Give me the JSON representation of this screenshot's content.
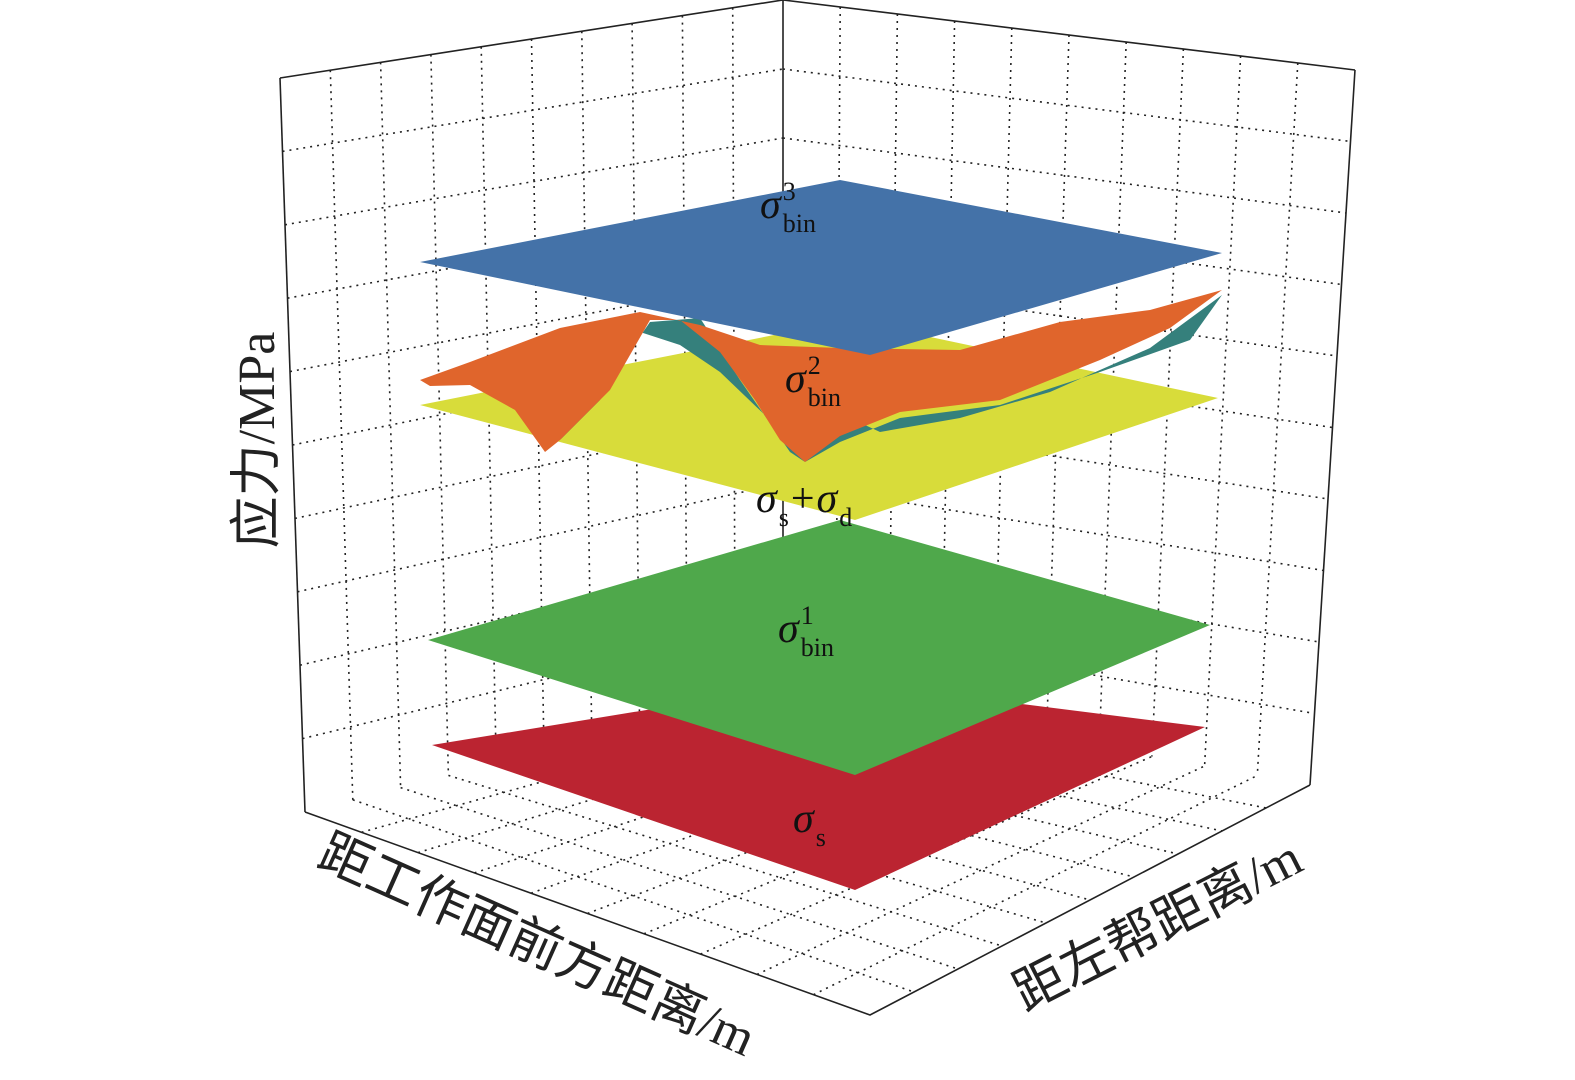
{
  "axes": {
    "z_label": "应力/MPa",
    "x_label": "距工作面前方距离/m",
    "y_label": "距左帮距离/m"
  },
  "surfaces": [
    {
      "label": [
        {
          "text": "σ",
          "pos": "base"
        },
        {
          "text": "3",
          "pos": "sup"
        },
        {
          "text": "bin",
          "pos": "sub"
        }
      ]
    },
    {
      "label": [
        {
          "text": "σ",
          "pos": "base"
        },
        {
          "text": "2",
          "pos": "sup"
        },
        {
          "text": "bin",
          "pos": "sub"
        }
      ]
    },
    {
      "label": [
        {
          "text": "σ",
          "pos": "base"
        },
        {
          "text": "s",
          "pos": "sub"
        },
        {
          "text": "+",
          "pos": "plain"
        },
        {
          "text": "σ",
          "pos": "base"
        },
        {
          "text": "d",
          "pos": "sub"
        }
      ]
    },
    {
      "label": [
        {
          "text": "σ",
          "pos": "base"
        },
        {
          "text": "1",
          "pos": "sup"
        },
        {
          "text": "bin",
          "pos": "sub"
        }
      ]
    },
    {
      "label": [
        {
          "text": "σ",
          "pos": "base"
        },
        {
          "text": "s",
          "pos": "sub"
        }
      ]
    }
  ]
}
